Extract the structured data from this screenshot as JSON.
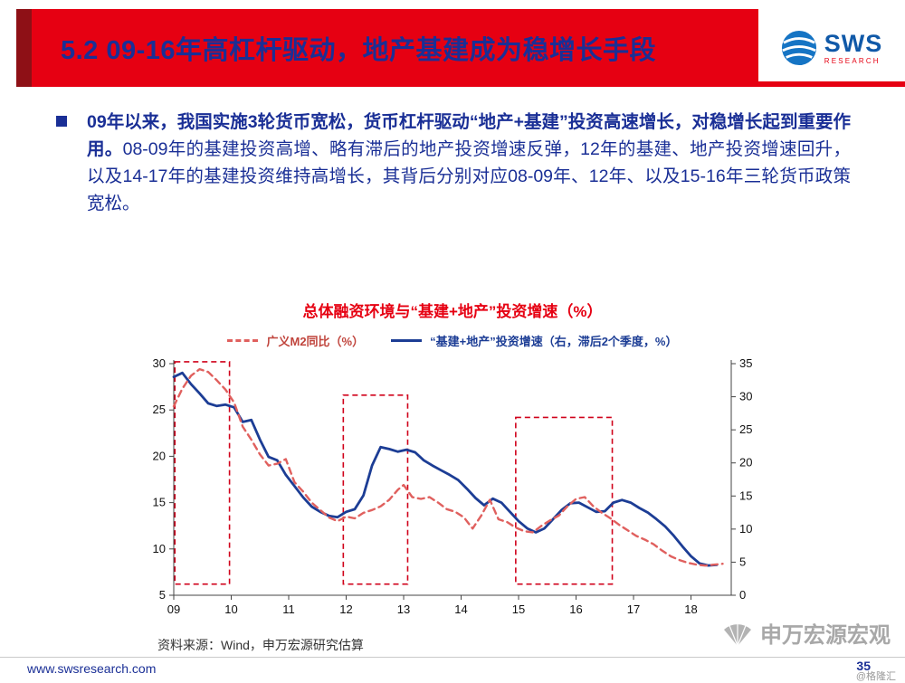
{
  "header": {
    "title": "5.2 09-16年高杠杆驱动，地产基建成为稳增长手段",
    "logo_text": "SWS",
    "logo_subtext": "RESEARCH"
  },
  "bullet": {
    "bold_text": "09年以来，我国实施3轮货币宽松，货币杠杆驱动“地产+基建”投资高速增长，对稳增长起到重要作用。",
    "regular_text": "08-09年的基建投资高增、略有滞后的地产投资增速反弹，12年的基建、地产投资增速回升，以及14-17年的基建投资维持高增长，其背后分别对应08-09年、12年、以及15-16年三轮货币政策宽松。"
  },
  "chart": {
    "source": "资料来源：Wind，申万宏源研究估算"
  },
  "chart_data": {
    "type": "line",
    "title": "总体融资环境与“基建+地产”投资增速（%）",
    "x_range": [
      2009,
      2018.7
    ],
    "x_tick_years": [
      2009,
      2010,
      2011,
      2012,
      2013,
      2014,
      2015,
      2016,
      2017,
      2018
    ],
    "x_tick_labels": [
      "09",
      "10",
      "11",
      "12",
      "13",
      "14",
      "15",
      "16",
      "17",
      "18"
    ],
    "left_axis": {
      "min": 5,
      "max": 30,
      "ticks": [
        5,
        10,
        15,
        20,
        25,
        30
      ]
    },
    "right_axis": {
      "min": 0,
      "max": 35,
      "ticks": [
        0,
        5,
        10,
        15,
        20,
        25,
        30,
        35
      ]
    },
    "grid": false,
    "legend_position": "top",
    "series": [
      {
        "name": "广义M2同比（%）",
        "axis": "left",
        "style": "dashed",
        "color": "#e0605e",
        "points": [
          [
            2009.0,
            25.4
          ],
          [
            2009.15,
            27.3
          ],
          [
            2009.3,
            28.7
          ],
          [
            2009.45,
            29.4
          ],
          [
            2009.6,
            29.1
          ],
          [
            2009.75,
            28.2
          ],
          [
            2009.9,
            27.2
          ],
          [
            2010.05,
            25.8
          ],
          [
            2010.2,
            23.2
          ],
          [
            2010.35,
            21.8
          ],
          [
            2010.5,
            20.2
          ],
          [
            2010.65,
            19.0
          ],
          [
            2010.8,
            19.2
          ],
          [
            2010.95,
            19.7
          ],
          [
            2011.1,
            17.2
          ],
          [
            2011.25,
            16.2
          ],
          [
            2011.4,
            15.0
          ],
          [
            2011.55,
            14.2
          ],
          [
            2011.7,
            13.4
          ],
          [
            2011.85,
            13.0
          ],
          [
            2012.0,
            13.5
          ],
          [
            2012.15,
            13.3
          ],
          [
            2012.3,
            13.9
          ],
          [
            2012.45,
            14.2
          ],
          [
            2012.6,
            14.6
          ],
          [
            2012.75,
            15.3
          ],
          [
            2012.9,
            16.4
          ],
          [
            2013.0,
            16.9
          ],
          [
            2013.15,
            15.6
          ],
          [
            2013.3,
            15.4
          ],
          [
            2013.45,
            15.6
          ],
          [
            2013.6,
            15.0
          ],
          [
            2013.75,
            14.3
          ],
          [
            2013.9,
            14.0
          ],
          [
            2014.05,
            13.4
          ],
          [
            2014.2,
            12.2
          ],
          [
            2014.35,
            13.6
          ],
          [
            2014.5,
            15.3
          ],
          [
            2014.65,
            13.2
          ],
          [
            2014.8,
            12.9
          ],
          [
            2014.95,
            12.3
          ],
          [
            2015.1,
            11.9
          ],
          [
            2015.25,
            11.8
          ],
          [
            2015.4,
            12.5
          ],
          [
            2015.55,
            13.1
          ],
          [
            2015.7,
            13.6
          ],
          [
            2015.85,
            14.6
          ],
          [
            2016.0,
            15.4
          ],
          [
            2016.15,
            15.6
          ],
          [
            2016.3,
            14.6
          ],
          [
            2016.45,
            13.9
          ],
          [
            2016.6,
            13.3
          ],
          [
            2016.75,
            12.6
          ],
          [
            2016.9,
            12.0
          ],
          [
            2017.05,
            11.4
          ],
          [
            2017.2,
            11.0
          ],
          [
            2017.35,
            10.5
          ],
          [
            2017.5,
            9.8
          ],
          [
            2017.65,
            9.2
          ],
          [
            2017.8,
            8.8
          ],
          [
            2017.95,
            8.5
          ],
          [
            2018.1,
            8.3
          ],
          [
            2018.25,
            8.2
          ],
          [
            2018.4,
            8.3
          ],
          [
            2018.55,
            8.4
          ]
        ]
      },
      {
        "name": "“基建+地产”投资增速（右，滞后2个季度，%）",
        "axis": "right",
        "style": "solid",
        "color": "#1c3d95",
        "points": [
          [
            2009.0,
            33.0
          ],
          [
            2009.15,
            33.6
          ],
          [
            2009.3,
            31.9
          ],
          [
            2009.45,
            30.5
          ],
          [
            2009.6,
            29.0
          ],
          [
            2009.75,
            28.6
          ],
          [
            2009.9,
            28.8
          ],
          [
            2010.05,
            28.4
          ],
          [
            2010.2,
            26.2
          ],
          [
            2010.35,
            26.5
          ],
          [
            2010.5,
            23.5
          ],
          [
            2010.65,
            20.9
          ],
          [
            2010.8,
            20.4
          ],
          [
            2010.95,
            18.2
          ],
          [
            2011.1,
            16.5
          ],
          [
            2011.25,
            14.8
          ],
          [
            2011.4,
            13.4
          ],
          [
            2011.55,
            12.6
          ],
          [
            2011.7,
            12.0
          ],
          [
            2011.85,
            11.8
          ],
          [
            2012.0,
            12.6
          ],
          [
            2012.15,
            13.0
          ],
          [
            2012.3,
            15.1
          ],
          [
            2012.45,
            19.6
          ],
          [
            2012.6,
            22.4
          ],
          [
            2012.75,
            22.1
          ],
          [
            2012.9,
            21.7
          ],
          [
            2013.05,
            22.0
          ],
          [
            2013.2,
            21.6
          ],
          [
            2013.35,
            20.4
          ],
          [
            2013.5,
            19.6
          ],
          [
            2013.65,
            18.9
          ],
          [
            2013.8,
            18.2
          ],
          [
            2013.95,
            17.4
          ],
          [
            2014.1,
            16.1
          ],
          [
            2014.25,
            14.7
          ],
          [
            2014.4,
            13.6
          ],
          [
            2014.55,
            14.6
          ],
          [
            2014.7,
            14.0
          ],
          [
            2014.85,
            12.6
          ],
          [
            2015.0,
            11.2
          ],
          [
            2015.15,
            10.1
          ],
          [
            2015.3,
            9.5
          ],
          [
            2015.45,
            10.1
          ],
          [
            2015.6,
            11.5
          ],
          [
            2015.75,
            12.9
          ],
          [
            2015.9,
            13.9
          ],
          [
            2016.05,
            14.0
          ],
          [
            2016.2,
            13.3
          ],
          [
            2016.35,
            12.6
          ],
          [
            2016.5,
            12.7
          ],
          [
            2016.65,
            14.0
          ],
          [
            2016.8,
            14.4
          ],
          [
            2016.95,
            14.0
          ],
          [
            2017.1,
            13.2
          ],
          [
            2017.25,
            12.5
          ],
          [
            2017.4,
            11.5
          ],
          [
            2017.55,
            10.4
          ],
          [
            2017.7,
            9.0
          ],
          [
            2017.85,
            7.4
          ],
          [
            2018.0,
            5.9
          ],
          [
            2018.15,
            4.8
          ],
          [
            2018.3,
            4.5
          ],
          [
            2018.45,
            4.6
          ]
        ]
      }
    ],
    "highlight_boxes": [
      {
        "x0": 2009.02,
        "x1": 2009.97,
        "y_top_left": 30.2,
        "y_bottom_left": 6.2
      },
      {
        "x0": 2011.95,
        "x1": 2013.07,
        "y_top_left": 26.6,
        "y_bottom_left": 6.2
      },
      {
        "x0": 2014.95,
        "x1": 2016.63,
        "y_top_left": 24.2,
        "y_bottom_left": 6.2
      }
    ],
    "highlight_color": "#d0021b"
  },
  "footer": {
    "url": "www.swsresearch.com",
    "page": "35",
    "watermark": "申万宏源宏观",
    "credit": "@格隆汇"
  },
  "colors": {
    "banner_red": "#e60012",
    "banner_dark_red": "#8e1016",
    "title_navy": "#1a2f96",
    "chart_title_red": "#e60012",
    "m2_line": "#e0605e",
    "investment_line": "#1c3d95",
    "highlight_box": "#d0021b"
  }
}
